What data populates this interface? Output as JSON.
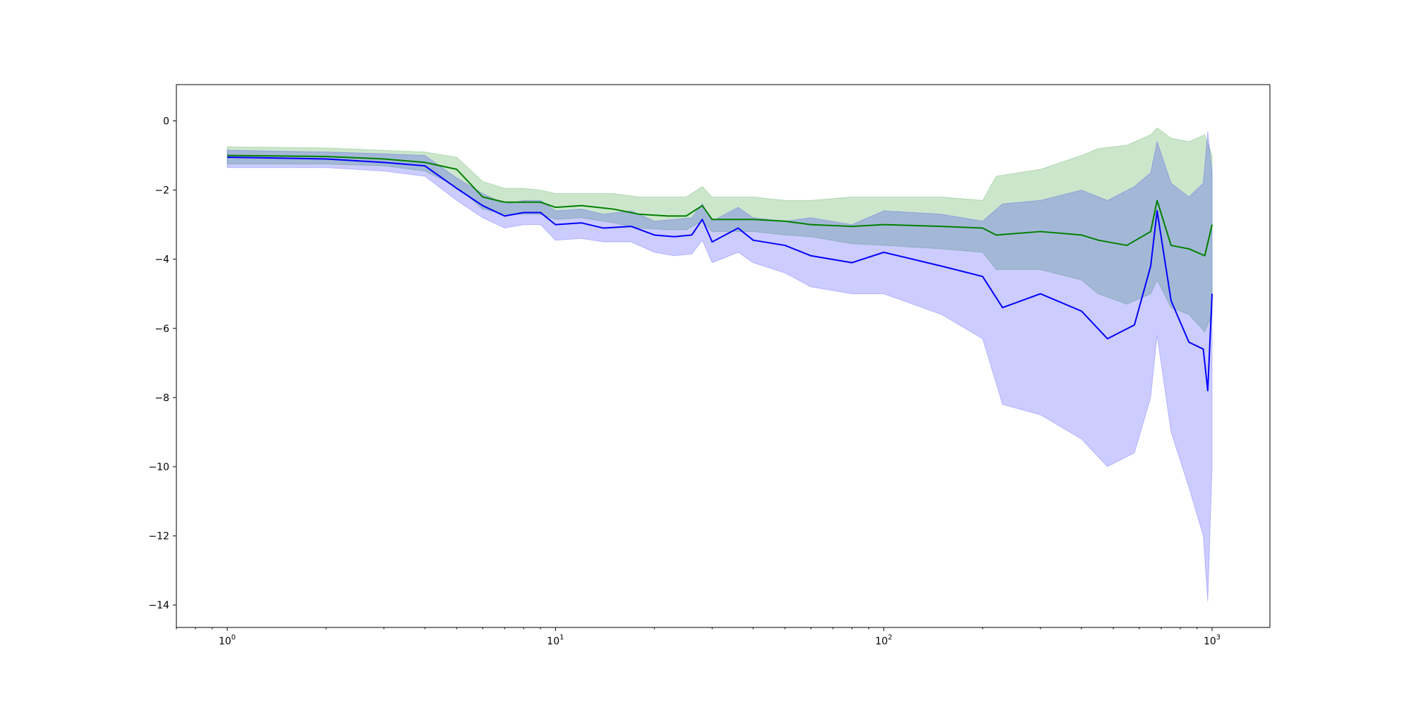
{
  "chart_data": {
    "type": "line",
    "title": "",
    "xlabel": "",
    "ylabel": "",
    "xscale": "log",
    "xlim": [
      0.7,
      1500
    ],
    "ylim": [
      -14.65,
      1.05
    ],
    "grid": false,
    "legend": "none",
    "x_ticks": [
      {
        "base": "10",
        "exp": "0",
        "value": 1
      },
      {
        "base": "10",
        "exp": "1",
        "value": 10
      },
      {
        "base": "10",
        "exp": "2",
        "value": 100
      },
      {
        "base": "10",
        "exp": "3",
        "value": 1000
      }
    ],
    "y_ticks": [
      {
        "value": 0,
        "label": "0"
      },
      {
        "value": -2,
        "label": "−2"
      },
      {
        "value": -4,
        "label": "−4"
      },
      {
        "value": -6,
        "label": "−6"
      },
      {
        "value": -8,
        "label": "−8"
      },
      {
        "value": -10,
        "label": "−10"
      },
      {
        "value": -12,
        "label": "−12"
      },
      {
        "value": -14,
        "label": "−14"
      }
    ],
    "series": [
      {
        "color": "#008000",
        "band_color": "#008000",
        "band_opacity": 0.2,
        "points": [
          {
            "x": 1,
            "y": -1.0,
            "lo": -1.25,
            "hi": -0.75
          },
          {
            "x": 2,
            "y": -1.03,
            "lo": -1.25,
            "hi": -0.78
          },
          {
            "x": 3,
            "y": -1.1,
            "lo": -1.3,
            "hi": -0.85
          },
          {
            "x": 4,
            "y": -1.2,
            "lo": -1.45,
            "hi": -0.9
          },
          {
            "x": 5,
            "y": -1.4,
            "lo": -1.9,
            "hi": -1.05
          },
          {
            "x": 6,
            "y": -2.2,
            "lo": -2.55,
            "hi": -1.75
          },
          {
            "x": 7,
            "y": -2.35,
            "lo": -2.7,
            "hi": -1.95
          },
          {
            "x": 8,
            "y": -2.35,
            "lo": -2.7,
            "hi": -1.95
          },
          {
            "x": 9,
            "y": -2.35,
            "lo": -2.7,
            "hi": -2.0
          },
          {
            "x": 10,
            "y": -2.5,
            "lo": -2.85,
            "hi": -2.1
          },
          {
            "x": 12,
            "y": -2.45,
            "lo": -2.8,
            "hi": -2.1
          },
          {
            "x": 15,
            "y": -2.55,
            "lo": -2.95,
            "hi": -2.1
          },
          {
            "x": 18,
            "y": -2.7,
            "lo": -3.1,
            "hi": -2.2
          },
          {
            "x": 22,
            "y": -2.75,
            "lo": -3.15,
            "hi": -2.2
          },
          {
            "x": 25,
            "y": -2.75,
            "lo": -3.15,
            "hi": -2.2
          },
          {
            "x": 28,
            "y": -2.45,
            "lo": -2.9,
            "hi": -1.9
          },
          {
            "x": 30,
            "y": -2.85,
            "lo": -3.2,
            "hi": -2.2
          },
          {
            "x": 40,
            "y": -2.85,
            "lo": -3.2,
            "hi": -2.2
          },
          {
            "x": 50,
            "y": -2.9,
            "lo": -3.3,
            "hi": -2.3
          },
          {
            "x": 60,
            "y": -3.0,
            "lo": -3.35,
            "hi": -2.3
          },
          {
            "x": 80,
            "y": -3.05,
            "lo": -3.55,
            "hi": -2.2
          },
          {
            "x": 100,
            "y": -3.0,
            "lo": -3.6,
            "hi": -2.2
          },
          {
            "x": 150,
            "y": -3.05,
            "lo": -3.7,
            "hi": -2.2
          },
          {
            "x": 200,
            "y": -3.1,
            "lo": -3.8,
            "hi": -2.3
          },
          {
            "x": 220,
            "y": -3.3,
            "lo": -4.3,
            "hi": -1.6
          },
          {
            "x": 300,
            "y": -3.2,
            "lo": -4.3,
            "hi": -1.4
          },
          {
            "x": 400,
            "y": -3.3,
            "lo": -4.6,
            "hi": -1.0
          },
          {
            "x": 450,
            "y": -3.45,
            "lo": -5.0,
            "hi": -0.8
          },
          {
            "x": 550,
            "y": -3.6,
            "lo": -5.3,
            "hi": -0.7
          },
          {
            "x": 650,
            "y": -3.2,
            "lo": -5.0,
            "hi": -0.4
          },
          {
            "x": 680,
            "y": -2.3,
            "lo": -4.6,
            "hi": -0.2
          },
          {
            "x": 750,
            "y": -3.6,
            "lo": -5.4,
            "hi": -0.5
          },
          {
            "x": 850,
            "y": -3.7,
            "lo": -5.6,
            "hi": -0.6
          },
          {
            "x": 950,
            "y": -3.9,
            "lo": -6.1,
            "hi": -0.4
          },
          {
            "x": 1000,
            "y": -3.0,
            "lo": -5.6,
            "hi": -1.0
          }
        ]
      },
      {
        "color": "#0000ff",
        "band_color": "#0000ff",
        "band_opacity": 0.2,
        "points": [
          {
            "x": 1,
            "y": -1.05,
            "lo": -1.35,
            "hi": -0.85
          },
          {
            "x": 2,
            "y": -1.1,
            "lo": -1.35,
            "hi": -0.9
          },
          {
            "x": 3,
            "y": -1.2,
            "lo": -1.45,
            "hi": -0.95
          },
          {
            "x": 4,
            "y": -1.3,
            "lo": -1.6,
            "hi": -1.0
          },
          {
            "x": 5,
            "y": -1.95,
            "lo": -2.3,
            "hi": -1.65
          },
          {
            "x": 6,
            "y": -2.45,
            "lo": -2.8,
            "hi": -2.1
          },
          {
            "x": 7,
            "y": -2.75,
            "lo": -3.1,
            "hi": -2.4
          },
          {
            "x": 8,
            "y": -2.65,
            "lo": -3.0,
            "hi": -2.3
          },
          {
            "x": 9,
            "y": -2.65,
            "lo": -3.0,
            "hi": -2.3
          },
          {
            "x": 10,
            "y": -3.0,
            "lo": -3.45,
            "hi": -2.6
          },
          {
            "x": 12,
            "y": -2.95,
            "lo": -3.4,
            "hi": -2.55
          },
          {
            "x": 14,
            "y": -3.1,
            "lo": -3.5,
            "hi": -2.7
          },
          {
            "x": 17,
            "y": -3.05,
            "lo": -3.5,
            "hi": -2.6
          },
          {
            "x": 20,
            "y": -3.3,
            "lo": -3.8,
            "hi": -2.9
          },
          {
            "x": 23,
            "y": -3.35,
            "lo": -3.9,
            "hi": -2.85
          },
          {
            "x": 26,
            "y": -3.3,
            "lo": -3.85,
            "hi": -2.8
          },
          {
            "x": 28,
            "y": -2.85,
            "lo": -3.45,
            "hi": -2.4
          },
          {
            "x": 30,
            "y": -3.5,
            "lo": -4.1,
            "hi": -2.9
          },
          {
            "x": 36,
            "y": -3.1,
            "lo": -3.8,
            "hi": -2.5
          },
          {
            "x": 40,
            "y": -3.45,
            "lo": -4.1,
            "hi": -2.8
          },
          {
            "x": 50,
            "y": -3.6,
            "lo": -4.4,
            "hi": -2.9
          },
          {
            "x": 60,
            "y": -3.9,
            "lo": -4.8,
            "hi": -2.8
          },
          {
            "x": 80,
            "y": -4.1,
            "lo": -5.0,
            "hi": -3.0
          },
          {
            "x": 100,
            "y": -3.8,
            "lo": -5.0,
            "hi": -2.6
          },
          {
            "x": 150,
            "y": -4.2,
            "lo": -5.6,
            "hi": -2.7
          },
          {
            "x": 200,
            "y": -4.5,
            "lo": -6.3,
            "hi": -2.9
          },
          {
            "x": 230,
            "y": -5.4,
            "lo": -8.2,
            "hi": -2.4
          },
          {
            "x": 300,
            "y": -5.0,
            "lo": -8.5,
            "hi": -2.3
          },
          {
            "x": 400,
            "y": -5.5,
            "lo": -9.2,
            "hi": -2.0
          },
          {
            "x": 480,
            "y": -6.3,
            "lo": -10.0,
            "hi": -2.3
          },
          {
            "x": 580,
            "y": -5.9,
            "lo": -9.6,
            "hi": -1.9
          },
          {
            "x": 650,
            "y": -4.2,
            "lo": -8.0,
            "hi": -1.5
          },
          {
            "x": 680,
            "y": -2.6,
            "lo": -6.2,
            "hi": -0.6
          },
          {
            "x": 750,
            "y": -5.2,
            "lo": -9.0,
            "hi": -1.8
          },
          {
            "x": 850,
            "y": -6.4,
            "lo": -10.6,
            "hi": -2.2
          },
          {
            "x": 940,
            "y": -6.6,
            "lo": -12.0,
            "hi": -1.8
          },
          {
            "x": 970,
            "y": -7.8,
            "lo": -13.9,
            "hi": -0.3
          },
          {
            "x": 1000,
            "y": -5.0,
            "lo": -10.0,
            "hi": -1.5
          }
        ]
      }
    ]
  }
}
